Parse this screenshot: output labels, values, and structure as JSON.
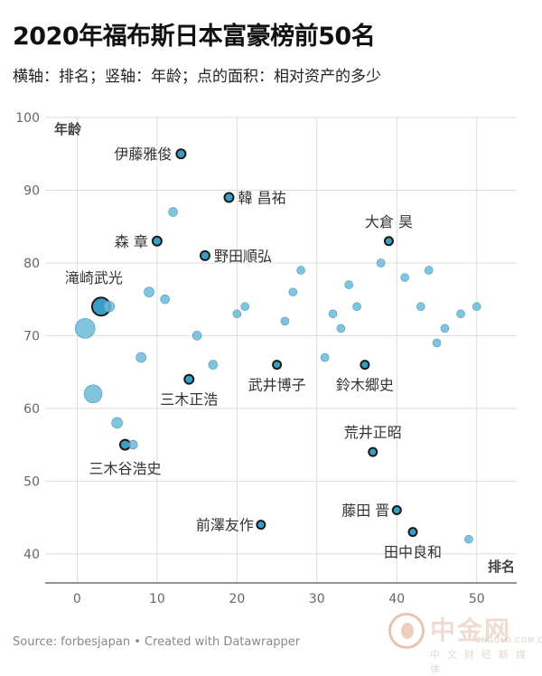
{
  "header": {
    "title": "2020年福布斯日本富豪榜前50名",
    "subtitle": "横轴：排名；竖轴：年龄；点的面积：相对资产的多少"
  },
  "footer": {
    "source": "Source: forbesjapan • Created with Datawrapper"
  },
  "watermark": {
    "name": "中金网",
    "domain": "CNGOLD.COM.CN",
    "tagline": "中文财经新媒体"
  },
  "colors": {
    "point_fill": "#6cbad7",
    "point_highlight_fill": "#3a9ec4",
    "point_stroke": "#1a1a1a",
    "grid": "#dddddd",
    "axis": "#555555"
  },
  "chart_data": {
    "type": "scatter",
    "xlabel": "排名",
    "ylabel": "年龄",
    "xlim": [
      -4,
      55
    ],
    "ylim": [
      36,
      100
    ],
    "xticks": [
      0,
      10,
      20,
      30,
      40,
      50
    ],
    "yticks": [
      40,
      50,
      60,
      70,
      80,
      90,
      100
    ],
    "grid": true,
    "size_encodes": "相对资产",
    "points": [
      {
        "x": 1,
        "y": 71,
        "size": 11
      },
      {
        "x": 2,
        "y": 62,
        "size": 10
      },
      {
        "x": 3,
        "y": 74,
        "size": 10,
        "label": "滝崎武光"
      },
      {
        "x": 4,
        "y": 74,
        "size": 6
      },
      {
        "x": 5,
        "y": 58,
        "size": 6
      },
      {
        "x": 6,
        "y": 55,
        "size": 5.5,
        "label": "三木谷浩史"
      },
      {
        "x": 7,
        "y": 55,
        "size": 5
      },
      {
        "x": 8,
        "y": 67,
        "size": 5.5
      },
      {
        "x": 9,
        "y": 76,
        "size": 5.5
      },
      {
        "x": 10,
        "y": 83,
        "size": 5,
        "label": "森 章"
      },
      {
        "x": 11,
        "y": 75,
        "size": 5
      },
      {
        "x": 12,
        "y": 87,
        "size": 5
      },
      {
        "x": 13,
        "y": 95,
        "size": 5,
        "label": "伊藤雅俊"
      },
      {
        "x": 14,
        "y": 64,
        "size": 5,
        "label": "三木正浩"
      },
      {
        "x": 15,
        "y": 70,
        "size": 5
      },
      {
        "x": 16,
        "y": 81,
        "size": 5,
        "label": "野田順弘"
      },
      {
        "x": 17,
        "y": 66,
        "size": 5
      },
      {
        "x": 19,
        "y": 89,
        "size": 5,
        "label": "韓 昌祐"
      },
      {
        "x": 20,
        "y": 73,
        "size": 4.5
      },
      {
        "x": 21,
        "y": 74,
        "size": 4.5
      },
      {
        "x": 23,
        "y": 44,
        "size": 4.5,
        "label": "前澤友作"
      },
      {
        "x": 25,
        "y": 66,
        "size": 4.5,
        "label": "武井博子"
      },
      {
        "x": 26,
        "y": 72,
        "size": 4.5
      },
      {
        "x": 27,
        "y": 76,
        "size": 4.5
      },
      {
        "x": 28,
        "y": 79,
        "size": 4.5
      },
      {
        "x": 31,
        "y": 67,
        "size": 4.5
      },
      {
        "x": 32,
        "y": 73,
        "size": 4.5
      },
      {
        "x": 33,
        "y": 71,
        "size": 4.5
      },
      {
        "x": 34,
        "y": 77,
        "size": 4.5
      },
      {
        "x": 35,
        "y": 74,
        "size": 4.5
      },
      {
        "x": 36,
        "y": 66,
        "size": 4.5,
        "label": "鈴木郷史"
      },
      {
        "x": 37,
        "y": 54,
        "size": 4.5,
        "label": "荒井正昭"
      },
      {
        "x": 38,
        "y": 80,
        "size": 4.5
      },
      {
        "x": 39,
        "y": 83,
        "size": 4.5,
        "label": "大倉 昊"
      },
      {
        "x": 40,
        "y": 46,
        "size": 4.5,
        "label": "藤田 晋"
      },
      {
        "x": 41,
        "y": 78,
        "size": 4.5
      },
      {
        "x": 42,
        "y": 43,
        "size": 4.5,
        "label": "田中良和"
      },
      {
        "x": 43,
        "y": 74,
        "size": 4.5
      },
      {
        "x": 44,
        "y": 79,
        "size": 4.5
      },
      {
        "x": 45,
        "y": 69,
        "size": 4.5
      },
      {
        "x": 46,
        "y": 71,
        "size": 4.5
      },
      {
        "x": 48,
        "y": 73,
        "size": 4.5
      },
      {
        "x": 49,
        "y": 42,
        "size": 4.5
      },
      {
        "x": 50,
        "y": 74,
        "size": 4.5
      }
    ]
  }
}
